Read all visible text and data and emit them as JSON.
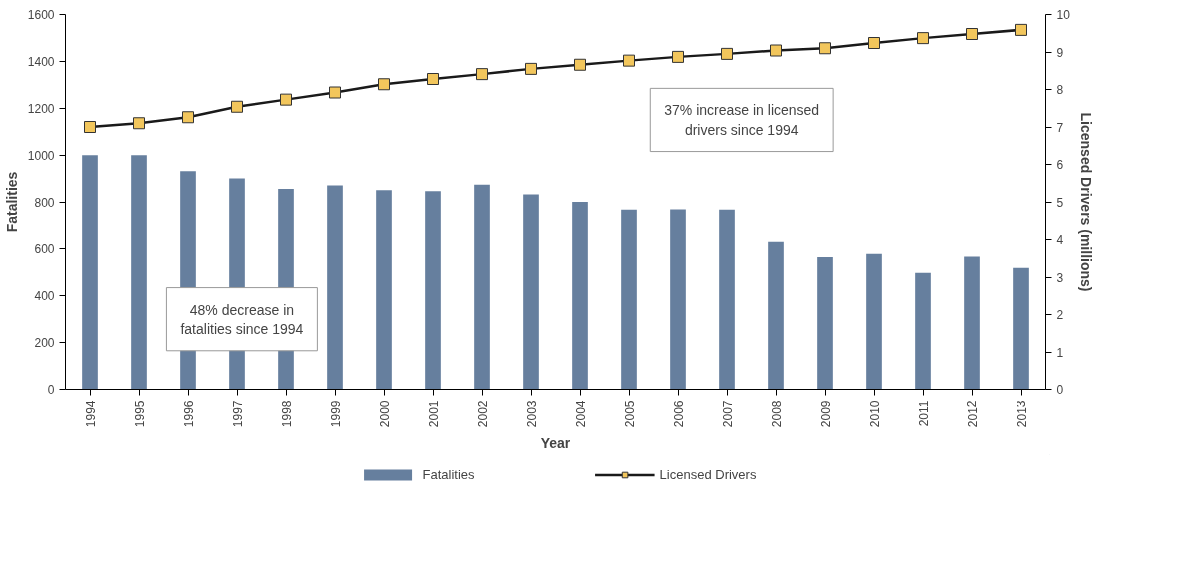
{
  "chart_data": {
    "type": "bar",
    "xlabel": "Year",
    "ylabel": "Fatalities",
    "y2label": "Licensed Drivers (millions)",
    "categories": [
      "1994",
      "1995",
      "1996",
      "1997",
      "1998",
      "1999",
      "2000",
      "2001",
      "2002",
      "2003",
      "2004",
      "2005",
      "2006",
      "2007",
      "2008",
      "2009",
      "2010",
      "2011",
      "2012",
      "2013"
    ],
    "series": [
      {
        "name": "Fatalities",
        "color": "#667f9e",
        "values": [
          1000,
          1000,
          931,
          900,
          856,
          870,
          850,
          846,
          874,
          832,
          800,
          767,
          768,
          767,
          630,
          565,
          579,
          498,
          568,
          519
        ]
      },
      {
        "name": "Licensed Drivers",
        "type": "line",
        "axis": "y2",
        "color": "#f2c65c",
        "marker": "square",
        "values": [
          7.0,
          7.1,
          7.26,
          7.54,
          7.73,
          7.92,
          8.14,
          8.28,
          8.41,
          8.55,
          8.66,
          8.77,
          8.87,
          8.95,
          9.04,
          9.1,
          9.24,
          9.37,
          9.48,
          9.59
        ]
      }
    ],
    "ylim": [
      0,
      1600
    ],
    "yticks": [
      0,
      200,
      400,
      600,
      800,
      1000,
      1200,
      1400,
      1600
    ],
    "y2lim": [
      0,
      10
    ],
    "y2ticks": [
      0,
      1,
      2,
      3,
      4,
      5,
      6,
      7,
      8,
      9,
      10
    ],
    "annotations": [
      "48% decrease in\nfatalities since 1994",
      "37% increase in licensed\ndrivers since 1994"
    ],
    "legend": "bottom",
    "grid": false
  }
}
